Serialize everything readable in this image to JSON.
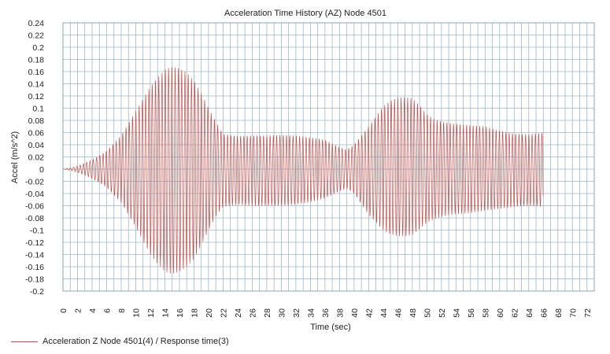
{
  "chart_data": {
    "type": "line",
    "title": "Acceleration Time History (AZ) Node 4501",
    "xlabel": "Time (sec)",
    "ylabel": "Accel (m/s^2)",
    "xlim": [
      0,
      73
    ],
    "ylim": [
      -0.2,
      0.24
    ],
    "x_ticks": [
      "0",
      "2",
      "4",
      "6",
      "8",
      "10",
      "12",
      "14",
      "16",
      "18",
      "20",
      "22",
      "24",
      "26",
      "28",
      "30",
      "32",
      "34",
      "36",
      "38",
      "40",
      "42",
      "44",
      "46",
      "48",
      "50",
      "52",
      "54",
      "56",
      "58",
      "60",
      "62",
      "64",
      "66",
      "68",
      "70",
      "72"
    ],
    "y_ticks": [
      "0.24",
      "0.22",
      "0.2",
      "0.18",
      "0.16",
      "0.14",
      "0.12",
      "0.1",
      "0.08",
      "0.06",
      "0.04",
      "0.02",
      "0",
      "-0.02",
      "-0.04",
      "-0.06",
      "-0.08",
      "-0.1",
      "-0.12",
      "-0.14",
      "-0.16",
      "-0.18",
      "-0.2"
    ],
    "grid": true,
    "legend_position": "bottom-left",
    "series": [
      {
        "name": "Acceleration Z Node 4501(4) / Response time(3)",
        "color": "#c0504d",
        "oscillation_period_sec": 0.45,
        "t_end_sec": 66,
        "envelope": {
          "t": [
            0,
            1,
            2,
            4,
            6,
            8,
            10,
            12,
            13,
            14,
            15,
            16,
            17,
            18,
            19,
            20,
            21,
            22,
            24,
            26,
            28,
            30,
            32,
            34,
            36,
            37,
            38,
            39,
            40,
            42,
            44,
            45,
            46,
            47,
            48,
            49,
            50,
            51,
            52,
            54,
            56,
            58,
            60,
            62,
            64,
            66
          ],
          "pos": [
            0,
            0.002,
            0.005,
            0.015,
            0.03,
            0.055,
            0.095,
            0.135,
            0.15,
            0.163,
            0.168,
            0.165,
            0.158,
            0.145,
            0.125,
            0.1,
            0.078,
            0.058,
            0.054,
            0.055,
            0.055,
            0.056,
            0.055,
            0.052,
            0.048,
            0.042,
            0.036,
            0.032,
            0.04,
            0.07,
            0.103,
            0.112,
            0.117,
            0.118,
            0.116,
            0.105,
            0.09,
            0.082,
            0.078,
            0.074,
            0.072,
            0.07,
            0.063,
            0.058,
            0.057,
            0.06
          ],
          "neg": [
            0,
            -0.002,
            -0.005,
            -0.015,
            -0.03,
            -0.055,
            -0.095,
            -0.14,
            -0.155,
            -0.168,
            -0.172,
            -0.168,
            -0.16,
            -0.147,
            -0.125,
            -0.1,
            -0.078,
            -0.062,
            -0.058,
            -0.06,
            -0.06,
            -0.06,
            -0.058,
            -0.054,
            -0.048,
            -0.042,
            -0.036,
            -0.032,
            -0.04,
            -0.075,
            -0.1,
            -0.107,
            -0.11,
            -0.11,
            -0.108,
            -0.098,
            -0.088,
            -0.082,
            -0.078,
            -0.074,
            -0.072,
            -0.068,
            -0.065,
            -0.062,
            -0.06,
            -0.062
          ]
        }
      }
    ]
  }
}
